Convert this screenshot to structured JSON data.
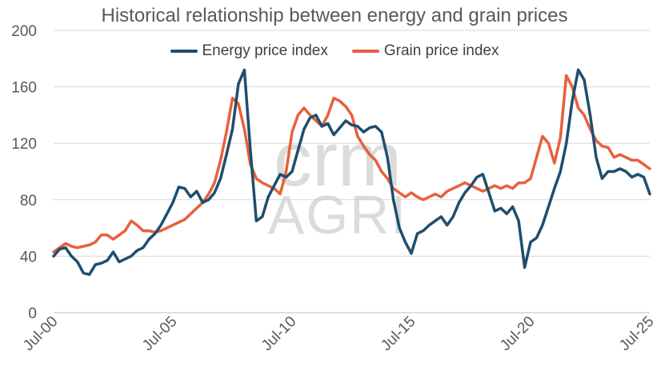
{
  "chart_data": {
    "type": "line",
    "title": "Historical relationship between energy and grain prices",
    "xlabel": "",
    "ylabel": "",
    "ylim": [
      0,
      200
    ],
    "yticks": [
      0,
      40,
      80,
      120,
      160,
      200
    ],
    "xlim": [
      2000.5,
      2025.5
    ],
    "xtick_labels": [
      "Jul-00",
      "Jul-05",
      "Jul-10",
      "Jul-15",
      "Jul-20",
      "Jul-25"
    ],
    "xtick_positions": [
      2000.5,
      2005.5,
      2010.5,
      2015.5,
      2020.5,
      2025.5
    ],
    "watermark": {
      "line1": "crm",
      "line2": "AGRI"
    },
    "colors": {
      "energy": "#1f4e6e",
      "grain": "#e8603c",
      "grid": "#d9d9d9",
      "axis": "#bfbfbf"
    },
    "series": [
      {
        "name": "Energy price index",
        "color": "#1f4e6e",
        "x": [
          2000.5,
          2000.75,
          2001.0,
          2001.25,
          2001.5,
          2001.75,
          2002.0,
          2002.25,
          2002.5,
          2002.75,
          2003.0,
          2003.25,
          2003.5,
          2003.75,
          2004.0,
          2004.25,
          2004.5,
          2004.75,
          2005.0,
          2005.25,
          2005.5,
          2005.75,
          2006.0,
          2006.25,
          2006.5,
          2006.75,
          2007.0,
          2007.25,
          2007.5,
          2007.75,
          2008.0,
          2008.25,
          2008.5,
          2008.75,
          2009.0,
          2009.25,
          2009.5,
          2009.75,
          2010.0,
          2010.25,
          2010.5,
          2010.75,
          2011.0,
          2011.25,
          2011.5,
          2011.75,
          2012.0,
          2012.25,
          2012.5,
          2012.75,
          2013.0,
          2013.25,
          2013.5,
          2013.75,
          2014.0,
          2014.25,
          2014.5,
          2014.75,
          2015.0,
          2015.25,
          2015.5,
          2015.75,
          2016.0,
          2016.25,
          2016.5,
          2016.75,
          2017.0,
          2017.25,
          2017.5,
          2017.75,
          2018.0,
          2018.25,
          2018.5,
          2018.75,
          2019.0,
          2019.25,
          2019.5,
          2019.75,
          2020.0,
          2020.25,
          2020.5,
          2020.75,
          2021.0,
          2021.25,
          2021.5,
          2021.75,
          2022.0,
          2022.25,
          2022.5,
          2022.75,
          2023.0,
          2023.25,
          2023.5,
          2023.75,
          2024.0,
          2024.25,
          2024.5,
          2024.75,
          2025.0,
          2025.25,
          2025.5
        ],
        "values": [
          40,
          45,
          46,
          40,
          36,
          28,
          27,
          34,
          35,
          37,
          43,
          36,
          38,
          40,
          44,
          46,
          52,
          56,
          62,
          70,
          78,
          89,
          88,
          82,
          86,
          78,
          80,
          85,
          95,
          112,
          130,
          162,
          172,
          115,
          65,
          68,
          82,
          90,
          98,
          96,
          100,
          115,
          130,
          138,
          140,
          132,
          134,
          126,
          131,
          136,
          133,
          132,
          128,
          131,
          132,
          128,
          110,
          80,
          60,
          50,
          42,
          56,
          58,
          62,
          65,
          68,
          62,
          68,
          78,
          85,
          90,
          96,
          98,
          85,
          72,
          74,
          70,
          75,
          65,
          32,
          50,
          53,
          62,
          75,
          88,
          100,
          120,
          150,
          172,
          165,
          140,
          110,
          95,
          100,
          100,
          102,
          100,
          96,
          98,
          96,
          84
        ]
      },
      {
        "name": "Grain price index",
        "color": "#e8603c",
        "x": [
          2000.5,
          2000.75,
          2001.0,
          2001.25,
          2001.5,
          2001.75,
          2002.0,
          2002.25,
          2002.5,
          2002.75,
          2003.0,
          2003.25,
          2003.5,
          2003.75,
          2004.0,
          2004.25,
          2004.5,
          2004.75,
          2005.0,
          2005.25,
          2005.5,
          2005.75,
          2006.0,
          2006.25,
          2006.5,
          2006.75,
          2007.0,
          2007.25,
          2007.5,
          2007.75,
          2008.0,
          2008.25,
          2008.5,
          2008.75,
          2009.0,
          2009.25,
          2009.5,
          2009.75,
          2010.0,
          2010.25,
          2010.5,
          2010.75,
          2011.0,
          2011.25,
          2011.5,
          2011.75,
          2012.0,
          2012.25,
          2012.5,
          2012.75,
          2013.0,
          2013.25,
          2013.5,
          2013.75,
          2014.0,
          2014.25,
          2014.5,
          2014.75,
          2015.0,
          2015.25,
          2015.5,
          2015.75,
          2016.0,
          2016.25,
          2016.5,
          2016.75,
          2017.0,
          2017.25,
          2017.5,
          2017.75,
          2018.0,
          2018.25,
          2018.5,
          2018.75,
          2019.0,
          2019.25,
          2019.5,
          2019.75,
          2020.0,
          2020.25,
          2020.5,
          2020.75,
          2021.0,
          2021.25,
          2021.5,
          2021.75,
          2022.0,
          2022.25,
          2022.5,
          2022.75,
          2023.0,
          2023.25,
          2023.5,
          2023.75,
          2024.0,
          2024.25,
          2024.5,
          2024.75,
          2025.0,
          2025.25,
          2025.5
        ],
        "values": [
          43,
          46,
          49,
          47,
          46,
          47,
          48,
          50,
          55,
          55,
          52,
          55,
          58,
          65,
          62,
          58,
          58,
          57,
          58,
          60,
          62,
          64,
          66,
          70,
          74,
          78,
          84,
          92,
          108,
          128,
          152,
          148,
          130,
          105,
          95,
          92,
          90,
          88,
          84,
          100,
          128,
          140,
          145,
          140,
          136,
          132,
          140,
          152,
          150,
          146,
          140,
          125,
          118,
          112,
          108,
          100,
          95,
          88,
          85,
          82,
          85,
          82,
          80,
          82,
          84,
          82,
          86,
          88,
          90,
          92,
          90,
          88,
          86,
          88,
          90,
          88,
          90,
          88,
          92,
          92,
          95,
          110,
          125,
          120,
          106,
          124,
          168,
          160,
          145,
          140,
          130,
          122,
          118,
          117,
          110,
          112,
          110,
          108,
          108,
          105,
          102
        ]
      }
    ]
  }
}
